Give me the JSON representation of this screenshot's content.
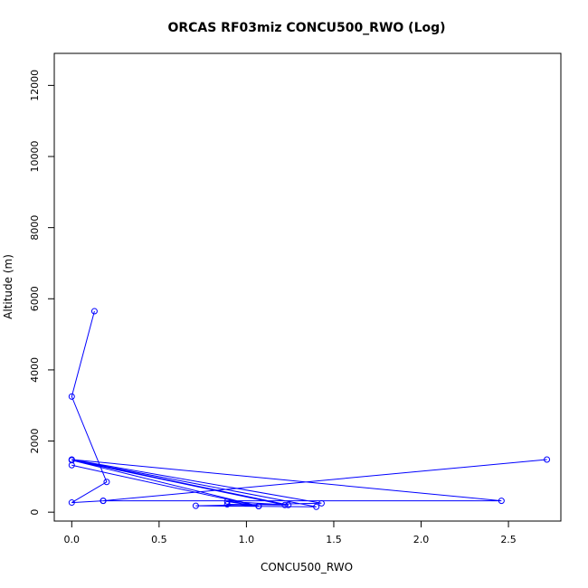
{
  "chart_data": {
    "type": "line",
    "title": "ORCAS RF03miz CONCU500_RWO (Log)",
    "xlabel": "CONCU500_RWO",
    "ylabel": "Altitude (m)",
    "xlim": [
      -0.1,
      2.8
    ],
    "ylim": [
      -250,
      12900
    ],
    "xticks": [
      0.0,
      0.5,
      1.0,
      1.5,
      2.0,
      2.5
    ],
    "xtick_labels": [
      "0.0",
      "0.5",
      "1.0",
      "1.5",
      "2.0",
      "2.5"
    ],
    "yticks": [
      0,
      2000,
      4000,
      6000,
      8000,
      10000,
      12000
    ],
    "ytick_labels": [
      "0",
      "2000",
      "4000",
      "6000",
      "8000",
      "10000",
      "12000"
    ],
    "grid": false,
    "series": [
      {
        "color": "#0000ff",
        "marker": "open-circle",
        "points": [
          {
            "x": 0.13,
            "y": 5650
          },
          {
            "x": 0.0,
            "y": 3250
          },
          {
            "x": 0.2,
            "y": 850
          },
          {
            "x": 0.0,
            "y": 270
          },
          {
            "x": 0.18,
            "y": 320
          },
          {
            "x": 2.72,
            "y": 1480
          },
          {
            "x": 0.18,
            "y": 320
          },
          {
            "x": 2.46,
            "y": 320
          },
          {
            "x": 0.0,
            "y": 1480
          },
          {
            "x": 1.43,
            "y": 250
          },
          {
            "x": 0.71,
            "y": 180
          },
          {
            "x": 1.4,
            "y": 150
          },
          {
            "x": 0.0,
            "y": 1470
          },
          {
            "x": 1.24,
            "y": 200
          },
          {
            "x": 0.89,
            "y": 300
          },
          {
            "x": 1.07,
            "y": 170
          },
          {
            "x": 0.0,
            "y": 1460
          },
          {
            "x": 1.22,
            "y": 200
          },
          {
            "x": 0.89,
            "y": 220
          },
          {
            "x": 1.07,
            "y": 170
          },
          {
            "x": 0.0,
            "y": 1320
          }
        ]
      }
    ]
  }
}
